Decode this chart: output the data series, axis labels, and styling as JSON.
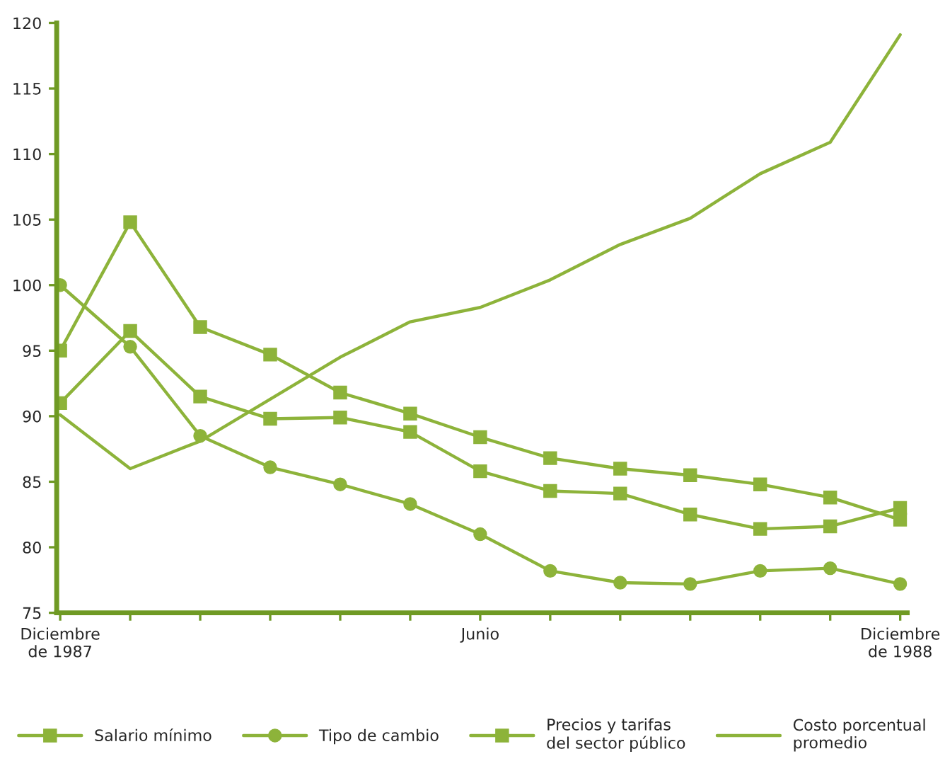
{
  "chart_data": {
    "type": "line",
    "categories": [
      "Diciembre\nde 1987",
      null,
      null,
      null,
      null,
      null,
      "Junio",
      null,
      null,
      null,
      null,
      null,
      "Diciembre\nde 1988"
    ],
    "ylim": [
      75,
      120
    ],
    "yticks": [
      75,
      80,
      85,
      90,
      95,
      100,
      105,
      110,
      115,
      120
    ],
    "grid": false,
    "legend": "bottom",
    "series": [
      {
        "name": "Salario mínimo",
        "color": "#8db33a",
        "marker": "square",
        "values": [
          95,
          104.8,
          96.8,
          94.7,
          91.8,
          90.2,
          88.4,
          86.8,
          86.0,
          85.5,
          84.8,
          83.8,
          82.1
        ]
      },
      {
        "name": "Tipo de cambio",
        "color": "#8db33a",
        "marker": "circle",
        "values": [
          100,
          95.3,
          88.5,
          86.1,
          84.8,
          83.3,
          81.0,
          78.2,
          77.3,
          77.2,
          78.2,
          78.4,
          77.2
        ]
      },
      {
        "name": "Precios y tarifas\ndel sector público",
        "color": "#8db33a",
        "marker": "square",
        "values": [
          91.0,
          96.5,
          91.5,
          89.8,
          89.9,
          88.8,
          85.8,
          84.3,
          84.1,
          82.5,
          81.4,
          81.6,
          83.0
        ]
      },
      {
        "name": "Costo porcentual\npromedio",
        "color": "#8db33a",
        "marker": "none",
        "values": [
          90.1,
          86.0,
          88.1,
          91.3,
          94.5,
          97.2,
          98.3,
          100.4,
          103.1,
          105.1,
          108.5,
          110.9,
          119.1
        ]
      }
    ]
  }
}
